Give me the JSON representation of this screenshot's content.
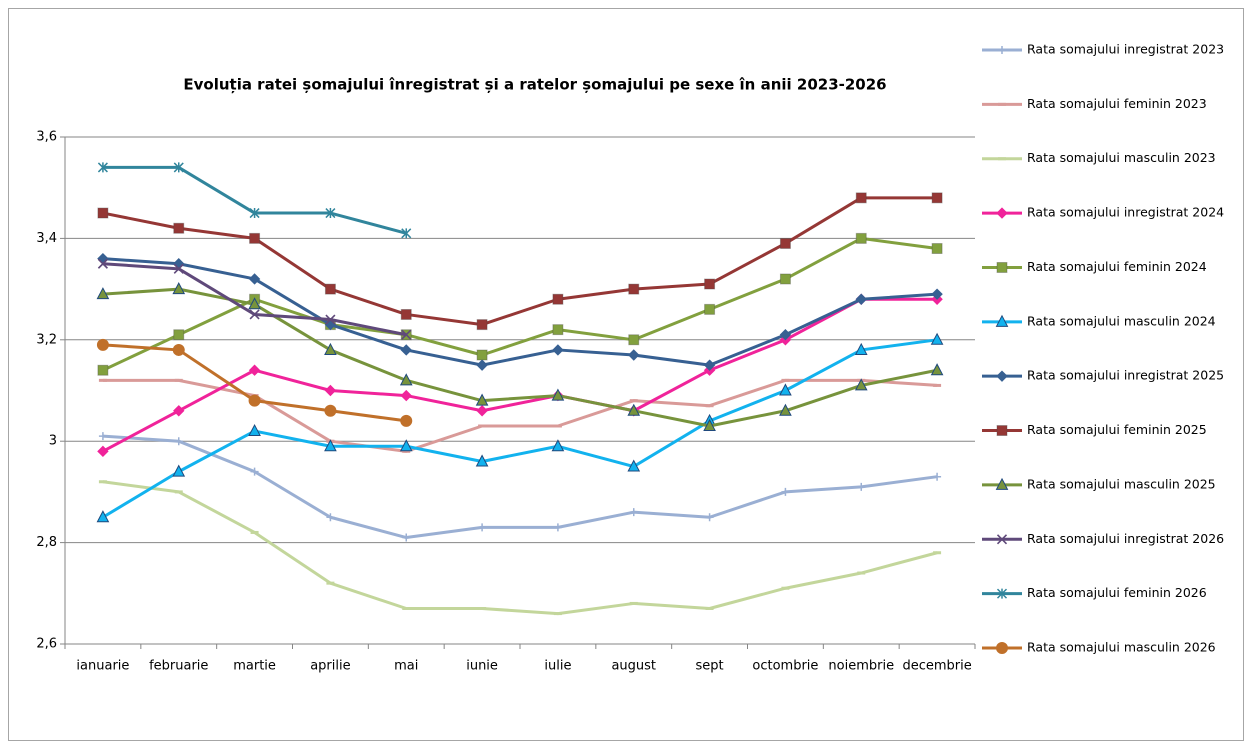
{
  "chart_data": {
    "type": "line",
    "title": "Evoluția ratei șomajului înregistrat și a ratelor șomajului pe sexe în anii 2023-2026",
    "categories": [
      "ianuarie",
      "februarie",
      "martie",
      "aprilie",
      "mai",
      "iunie",
      "iulie",
      "august",
      "sept",
      "octombrie",
      "noiembrie",
      "decembrie"
    ],
    "ylim": [
      2.6,
      3.6
    ],
    "yticks": [
      {
        "value": 2.6,
        "label": "2,6"
      },
      {
        "value": 2.8,
        "label": "2,8"
      },
      3,
      {
        "value": 3.2,
        "label": "3,2"
      },
      {
        "value": 3.4,
        "label": "3,4"
      },
      {
        "value": 3.6,
        "label": "3,6"
      }
    ],
    "grid": true,
    "legend": "right",
    "series": [
      {
        "name": "Rata somajului inregistrat 2023",
        "color": "#9aafd3",
        "marker": "plus",
        "values": [
          3.01,
          3.0,
          2.94,
          2.85,
          2.81,
          2.83,
          2.83,
          2.86,
          2.85,
          2.9,
          2.91,
          2.93
        ]
      },
      {
        "name": "Rata somajului feminin 2023",
        "color": "#d99a98",
        "marker": "dash",
        "values": [
          3.12,
          3.12,
          3.09,
          3.0,
          2.98,
          3.03,
          3.03,
          3.08,
          3.07,
          3.12,
          3.12,
          3.11
        ]
      },
      {
        "name": "Rata somajului masculin 2023",
        "color": "#c3d69b",
        "marker": "dash",
        "values": [
          2.92,
          2.9,
          2.82,
          2.72,
          2.67,
          2.67,
          2.66,
          2.68,
          2.67,
          2.71,
          2.74,
          2.78
        ]
      },
      {
        "name": "Rata somajului inregistrat 2024",
        "color": "#f0239a",
        "marker": "diamond",
        "values": [
          2.98,
          3.06,
          3.14,
          3.1,
          3.09,
          3.06,
          3.09,
          3.06,
          3.14,
          3.2,
          3.28,
          3.28
        ]
      },
      {
        "name": "Rata somajului feminin 2024",
        "color": "#82a03e",
        "marker": "square",
        "values": [
          3.14,
          3.21,
          3.28,
          3.23,
          3.21,
          3.17,
          3.22,
          3.2,
          3.26,
          3.32,
          3.4,
          3.38
        ]
      },
      {
        "name": "Rata somajului masculin 2024",
        "color": "#12b2ee",
        "marker": "triangle",
        "values": [
          2.85,
          2.94,
          3.02,
          2.99,
          2.99,
          2.96,
          2.99,
          2.95,
          3.04,
          3.1,
          3.18,
          3.2
        ]
      },
      {
        "name": "Rata somajului inregistrat 2025",
        "color": "#376092",
        "marker": "diamond",
        "values": [
          3.36,
          3.35,
          3.32,
          3.23,
          3.18,
          3.15,
          3.18,
          3.17,
          3.15,
          3.21,
          3.28,
          3.29
        ]
      },
      {
        "name": "Rata somajului feminin 2025",
        "color": "#953735",
        "marker": "square",
        "values": [
          3.45,
          3.42,
          3.4,
          3.3,
          3.25,
          3.23,
          3.28,
          3.3,
          3.31,
          3.39,
          3.48,
          3.48
        ]
      },
      {
        "name": "Rata somajului masculin 2025",
        "color": "#77933c",
        "marker": "triangle",
        "values": [
          3.29,
          3.3,
          3.27,
          3.18,
          3.12,
          3.08,
          3.09,
          3.06,
          3.03,
          3.06,
          3.11,
          3.14
        ]
      },
      {
        "name": "Rata somajului inregistrat 2026",
        "color": "#5f497a",
        "marker": "x",
        "values": [
          3.35,
          3.34,
          3.25,
          3.24,
          3.21,
          null,
          null,
          null,
          null,
          null,
          null,
          null
        ]
      },
      {
        "name": "Rata somajului feminin 2026",
        "color": "#31859c",
        "marker": "star",
        "values": [
          3.54,
          3.54,
          3.45,
          3.45,
          3.41,
          null,
          null,
          null,
          null,
          null,
          null,
          null
        ]
      },
      {
        "name": "Rata somajului masculin 2026",
        "color": "#c0702a",
        "marker": "circle",
        "values": [
          3.19,
          3.18,
          3.08,
          3.06,
          3.04,
          null,
          null,
          null,
          null,
          null,
          null,
          null
        ]
      }
    ]
  }
}
